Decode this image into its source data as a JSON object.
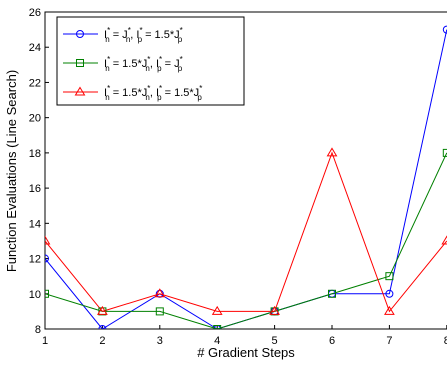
{
  "chart_data": {
    "type": "line",
    "xlabel": "# Gradient Steps",
    "ylabel": "Function Evaluations (Line Search)",
    "x": [
      1,
      2,
      3,
      4,
      5,
      6,
      7,
      8
    ],
    "xlim": [
      1,
      8
    ],
    "ylim": [
      8,
      26
    ],
    "xticks": [
      "1",
      "2",
      "3",
      "4",
      "5",
      "6",
      "7",
      "8"
    ],
    "yticks": [
      "8",
      "10",
      "12",
      "14",
      "16",
      "18",
      "20",
      "22",
      "24",
      "26"
    ],
    "grid": false,
    "legend_position": "top-left",
    "series": [
      {
        "name": "I*n = J*n, I*p = 1.5*J*p",
        "legend": {
          "a": "I",
          "b": " = J",
          "c": ", I",
          "d": " = 1.5*J"
        },
        "color": "#0000ff",
        "marker": "circle",
        "values": [
          12,
          8,
          10,
          8,
          9,
          10,
          10,
          25
        ]
      },
      {
        "name": "I*n = 1.5*J*n, I*p = J*p",
        "legend": {
          "a": "I",
          "b": " = 1.5*J",
          "c": ", I",
          "d": " = J"
        },
        "color": "#008000",
        "marker": "square",
        "values": [
          10,
          9,
          9,
          8,
          9,
          10,
          11,
          18
        ]
      },
      {
        "name": "I*n = 1.5*J*n, I*p = 1.5*J*p",
        "legend": {
          "a": "I",
          "b": " = 1.5*J",
          "c": ", I",
          "d": " = 1.5*J"
        },
        "color": "#ff0000",
        "marker": "triangle",
        "values": [
          13,
          9,
          10,
          9,
          9,
          18,
          9,
          13
        ]
      }
    ]
  }
}
